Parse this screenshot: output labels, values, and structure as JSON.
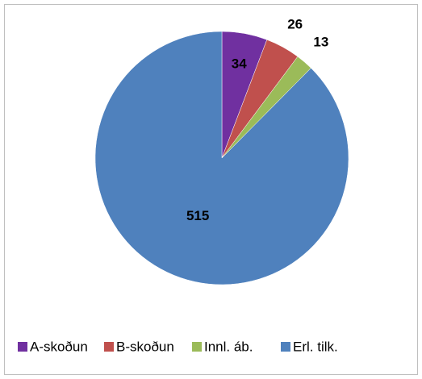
{
  "chart_data": {
    "type": "pie",
    "categories": [
      "A-skoðun",
      "B-skoðun",
      "Innl. áb.",
      "Erl. tilk."
    ],
    "values": [
      34,
      26,
      13,
      515
    ],
    "colors": [
      "#7030a0",
      "#c0504d",
      "#9bbb59",
      "#4f81bd"
    ],
    "legend": "bottom"
  }
}
